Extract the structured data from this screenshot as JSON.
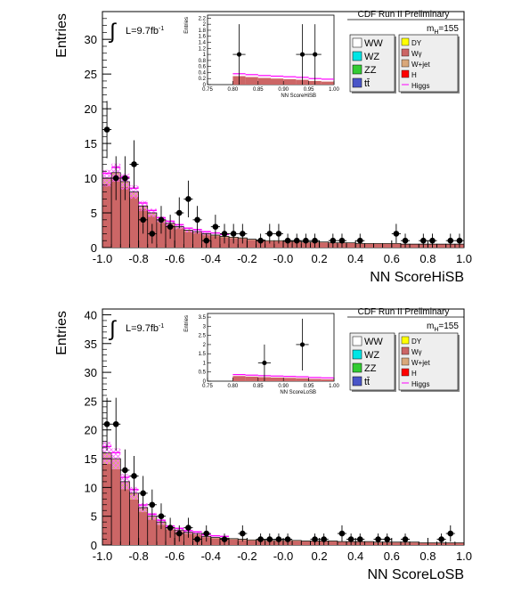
{
  "colors": {
    "WW": "#ffffff",
    "WZ": "#00e5e5",
    "ZZ": "#33cc33",
    "ttbar": "#4a55c8",
    "DY": "#ffff00",
    "Wgamma": "#cc6666",
    "Wjet": "#d9a87a",
    "H": "#ff0000",
    "signal": "#ff00ff",
    "uncert": "#ff66ff"
  },
  "legend": {
    "left": [
      "WW",
      "WZ",
      "ZZ",
      "tt̄"
    ],
    "right": [
      "DY",
      "Wγ",
      "W+jet",
      "H",
      "Higgs"
    ],
    "mass_label": "m",
    "mass_sub": "H",
    "mass_value": "=155"
  },
  "chart_data": [
    {
      "type": "bar",
      "title": "CDF Run II Preliminary",
      "lumi_prefix": "L=9.7fb",
      "lumi_sup": "-1",
      "xlabel": "NN ScoreHiSB",
      "ylabel": "Entries",
      "xlim": [
        -1.0,
        1.0
      ],
      "ylim": [
        0,
        34
      ],
      "xticks": [
        "-1.0",
        "-0.8",
        "-0.6",
        "-0.4",
        "-0.2",
        "-0.0",
        "0.2",
        "0.4",
        "0.6",
        "0.8",
        "1.0"
      ],
      "yticks": [
        "0",
        "5",
        "10",
        "15",
        "20",
        "25",
        "30"
      ],
      "bin_width": 0.05,
      "background_total": [
        10.0,
        10.8,
        9.5,
        8.0,
        6.0,
        5.0,
        4.0,
        3.5,
        3.0,
        2.5,
        2.3,
        2.0,
        1.8,
        1.6,
        1.5,
        1.4,
        1.2,
        1.1,
        1.0,
        1.0,
        0.9,
        0.9,
        0.8,
        0.8,
        0.8,
        0.7,
        0.7,
        0.7,
        0.6,
        0.6,
        0.6,
        0.6,
        0.6,
        0.5,
        0.5,
        0.5,
        0.5,
        0.5,
        0.5,
        0.5
      ],
      "data_points": [
        {
          "x": -0.975,
          "y": 17
        },
        {
          "x": -0.925,
          "y": 10
        },
        {
          "x": -0.875,
          "y": 10
        },
        {
          "x": -0.825,
          "y": 12
        },
        {
          "x": -0.775,
          "y": 4
        },
        {
          "x": -0.725,
          "y": 2
        },
        {
          "x": -0.675,
          "y": 4
        },
        {
          "x": -0.625,
          "y": 3
        },
        {
          "x": -0.575,
          "y": 5
        },
        {
          "x": -0.525,
          "y": 7
        },
        {
          "x": -0.475,
          "y": 4
        },
        {
          "x": -0.425,
          "y": 1
        },
        {
          "x": -0.375,
          "y": 3
        },
        {
          "x": -0.325,
          "y": 2
        },
        {
          "x": -0.275,
          "y": 2
        },
        {
          "x": -0.225,
          "y": 2
        },
        {
          "x": -0.125,
          "y": 1
        },
        {
          "x": -0.075,
          "y": 2
        },
        {
          "x": -0.025,
          "y": 2
        },
        {
          "x": 0.025,
          "y": 1
        },
        {
          "x": 0.075,
          "y": 1
        },
        {
          "x": 0.125,
          "y": 1
        },
        {
          "x": 0.175,
          "y": 1
        },
        {
          "x": 0.275,
          "y": 1
        },
        {
          "x": 0.325,
          "y": 1
        },
        {
          "x": 0.425,
          "y": 1
        },
        {
          "x": 0.625,
          "y": 2
        },
        {
          "x": 0.675,
          "y": 1
        },
        {
          "x": 0.775,
          "y": 1
        },
        {
          "x": 0.825,
          "y": 1
        },
        {
          "x": 0.925,
          "y": 1
        },
        {
          "x": 0.975,
          "y": 1
        }
      ],
      "inset": {
        "xlabel": "NN ScoreHiSB",
        "ylabel": "Entries",
        "xlim": [
          0.75,
          1.0
        ],
        "ylim": [
          0,
          2.3
        ],
        "xticks": [
          "0.75",
          "0.80",
          "0.85",
          "0.90",
          "0.95",
          "1.00"
        ],
        "yticks": [
          "0",
          "0.2",
          "0.4",
          "0.6",
          "0.8",
          "1",
          "1.2",
          "1.4",
          "1.6",
          "1.8",
          "2",
          "2.2"
        ],
        "data_points": [
          {
            "x": 0.8125,
            "y": 1
          },
          {
            "x": 0.9375,
            "y": 1
          },
          {
            "x": 0.9625,
            "y": 1
          }
        ]
      }
    },
    {
      "type": "bar",
      "title": "CDF Run II Preliminary",
      "lumi_prefix": "L=9.7fb",
      "lumi_sup": "-1",
      "xlabel": "NN ScoreLoSB",
      "ylabel": "Entries",
      "xlim": [
        -1.0,
        1.0
      ],
      "ylim": [
        0,
        41
      ],
      "xticks": [
        "-1.0",
        "-0.8",
        "-0.6",
        "-0.4",
        "-0.2",
        "-0.0",
        "0.2",
        "0.4",
        "0.6",
        "0.8",
        "1.0"
      ],
      "yticks": [
        "0",
        "5",
        "10",
        "15",
        "20",
        "25",
        "30",
        "35",
        "40"
      ],
      "bin_width": 0.05,
      "background_total": [
        16.0,
        15.0,
        11.0,
        9.0,
        6.5,
        5.0,
        4.0,
        3.0,
        2.6,
        2.2,
        2.0,
        1.5,
        1.3,
        1.2,
        1.1,
        1.0,
        0.9,
        0.9,
        0.8,
        0.8,
        0.8,
        0.8,
        0.7,
        0.7,
        0.7,
        0.7,
        0.6,
        0.6,
        0.6,
        0.6,
        0.5,
        0.5,
        0.5,
        0.5,
        0.5,
        0.4,
        0.4,
        0.4,
        0.4,
        0.4
      ],
      "data_points": [
        {
          "x": -0.975,
          "y": 21
        },
        {
          "x": -0.925,
          "y": 21
        },
        {
          "x": -0.875,
          "y": 13
        },
        {
          "x": -0.825,
          "y": 12
        },
        {
          "x": -0.775,
          "y": 9
        },
        {
          "x": -0.725,
          "y": 7
        },
        {
          "x": -0.675,
          "y": 5
        },
        {
          "x": -0.625,
          "y": 3
        },
        {
          "x": -0.575,
          "y": 2
        },
        {
          "x": -0.525,
          "y": 3
        },
        {
          "x": -0.475,
          "y": 1
        },
        {
          "x": -0.425,
          "y": 2
        },
        {
          "x": -0.325,
          "y": 1
        },
        {
          "x": -0.225,
          "y": 2
        },
        {
          "x": -0.125,
          "y": 1
        },
        {
          "x": -0.075,
          "y": 1
        },
        {
          "x": -0.025,
          "y": 1
        },
        {
          "x": 0.025,
          "y": 1
        },
        {
          "x": 0.175,
          "y": 1
        },
        {
          "x": 0.225,
          "y": 1
        },
        {
          "x": 0.325,
          "y": 2
        },
        {
          "x": 0.375,
          "y": 1
        },
        {
          "x": 0.425,
          "y": 1
        },
        {
          "x": 0.525,
          "y": 1
        },
        {
          "x": 0.575,
          "y": 1
        },
        {
          "x": 0.675,
          "y": 1
        },
        {
          "x": 0.875,
          "y": 1
        },
        {
          "x": 0.925,
          "y": 2
        }
      ],
      "inset": {
        "xlabel": "NN ScoreLoSB",
        "ylabel": "Entries",
        "xlim": [
          0.75,
          1.0
        ],
        "ylim": [
          0,
          3.7
        ],
        "xticks": [
          "0.75",
          "0.80",
          "0.85",
          "0.90",
          "0.95",
          "1.00"
        ],
        "yticks": [
          "0",
          "0.5",
          "1",
          "1.5",
          "2",
          "2.5",
          "3",
          "3.5"
        ],
        "data_points": [
          {
            "x": 0.8625,
            "y": 1
          },
          {
            "x": 0.9375,
            "y": 2
          }
        ]
      }
    }
  ]
}
